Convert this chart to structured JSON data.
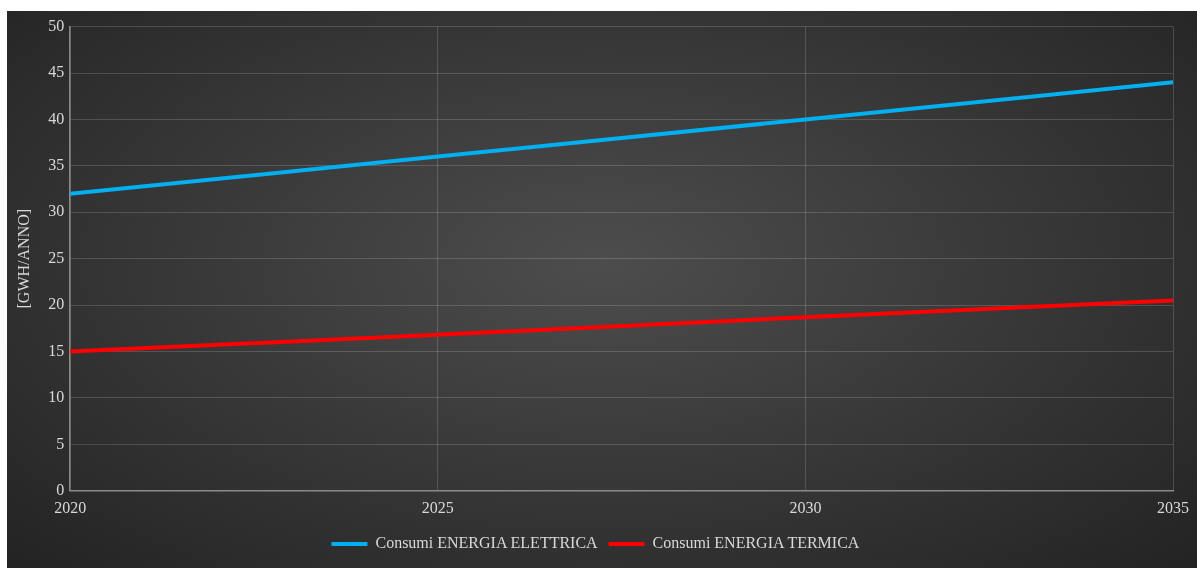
{
  "chart_data": {
    "type": "line",
    "ylabel": "[GWH/ANNO]",
    "x": [
      2020,
      2025,
      2030,
      2035
    ],
    "series": [
      {
        "name": "Consumi ENERGIA ELETTRICA",
        "color": "#00b0f0",
        "values": [
          32,
          36,
          40,
          44
        ]
      },
      {
        "name": "Consumi ENERGIA TERMICA",
        "color": "#ff0000",
        "values": [
          15,
          16.8,
          18.7,
          20.5
        ]
      }
    ],
    "xlim": [
      2020,
      2035
    ],
    "xticks": [
      2020,
      2025,
      2030,
      2035
    ],
    "ylim": [
      0,
      50
    ],
    "yticks": [
      0,
      5,
      10,
      15,
      20,
      25,
      30,
      35,
      40,
      45,
      50
    ],
    "grid": true,
    "legend": "bottom",
    "marker": "none",
    "line_style": "solid"
  }
}
